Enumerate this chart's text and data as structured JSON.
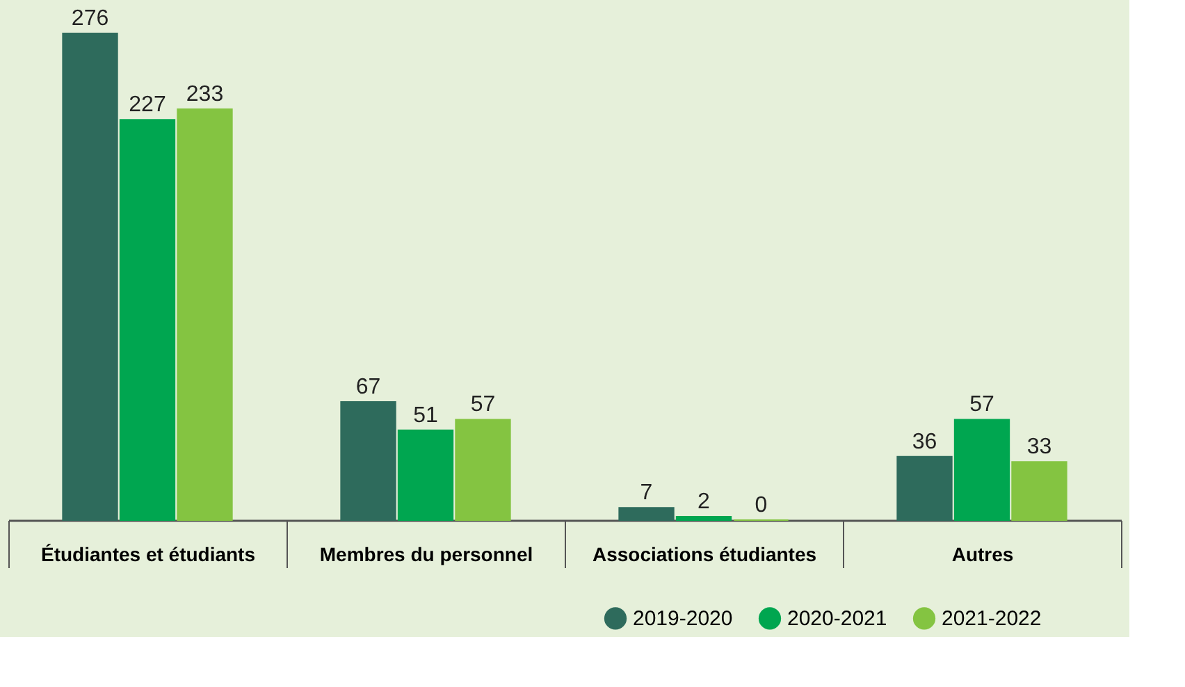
{
  "chart_data": {
    "type": "bar",
    "categories": [
      "Étudiantes et étudiants",
      "Membres du personnel",
      "Associations étudiantes",
      "Autres"
    ],
    "series": [
      {
        "name": "2019-2020",
        "color": "#2e6b5c",
        "values": [
          276,
          67,
          7,
          36
        ]
      },
      {
        "name": "2020-2021",
        "color": "#00a650",
        "values": [
          227,
          51,
          2,
          57
        ]
      },
      {
        "name": "2021-2022",
        "color": "#84c441",
        "values": [
          233,
          57,
          0,
          33
        ]
      }
    ],
    "data_labels": true,
    "legend": "bottom right",
    "tick_labels": "x",
    "grid": false
  }
}
